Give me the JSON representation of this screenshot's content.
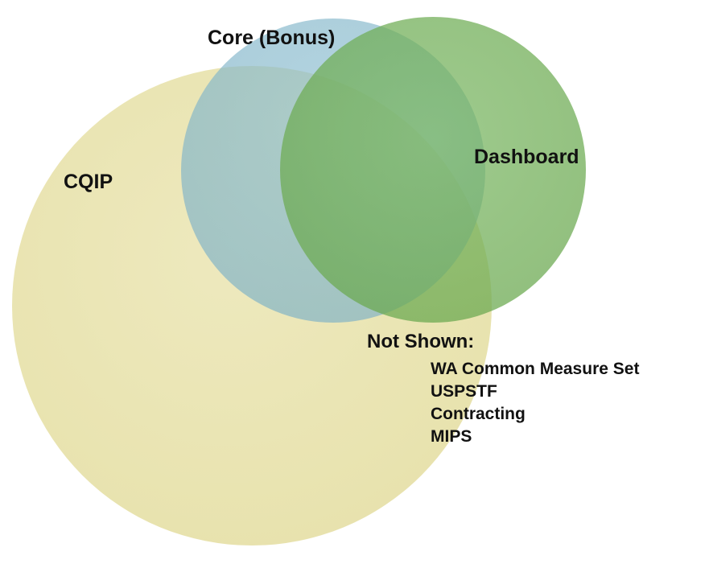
{
  "venn": {
    "sets": [
      {
        "id": "cqip",
        "label": "CQIP",
        "color": "#e6e0a7"
      },
      {
        "id": "core",
        "label": "Core (Bonus)",
        "color": "#7fb2c6"
      },
      {
        "id": "dashboard",
        "label": "Dashboard",
        "color": "#6aa84f"
      }
    ],
    "not_shown": {
      "title": "Not Shown:",
      "items": [
        "WA Common Measure Set",
        "USPSTF",
        "Contracting",
        "MIPS"
      ]
    }
  }
}
